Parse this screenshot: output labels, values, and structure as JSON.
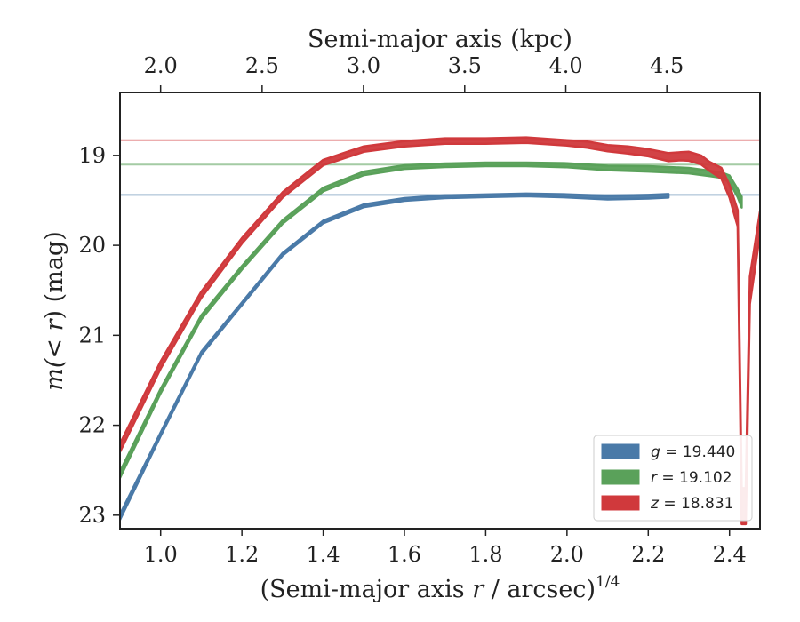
{
  "chart_data": {
    "type": "area",
    "xlabel_main": "(Semi-major axis ",
    "xlabel_var": "r",
    "xlabel_rest": " / arcsec)",
    "xlabel_sup": "1/4",
    "x2label": "Semi-major axis (kpc)",
    "ylabel_main": "m",
    "ylabel_paren": "(< ",
    "ylabel_var": "r",
    "ylabel_rest": ") (mag)",
    "xlim": [
      0.9,
      2.475
    ],
    "ylim": [
      23.15,
      18.3
    ],
    "y_inverted": true,
    "x_ticks": [
      1.0,
      1.2,
      1.4,
      1.6,
      1.8,
      2.0,
      2.2,
      2.4
    ],
    "x_tick_labels": [
      "1.0",
      "1.2",
      "1.4",
      "1.6",
      "1.8",
      "2.0",
      "2.2",
      "2.4"
    ],
    "x2_ticks": [
      2.0,
      2.5,
      3.0,
      3.5,
      4.0,
      4.5
    ],
    "x2_tick_labels": [
      "2.0",
      "2.5",
      "3.0",
      "3.5",
      "4.0",
      "4.5"
    ],
    "x2_positions": [
      0.9999,
      1.2497,
      1.4992,
      1.7483,
      1.9971,
      2.2457
    ],
    "y_ticks": [
      19,
      20,
      21,
      22,
      23
    ],
    "y_tick_labels": [
      "19",
      "20",
      "21",
      "22",
      "23"
    ],
    "grid": false,
    "legend_position": "bottom-right",
    "series": [
      {
        "band": "g",
        "value_text": " = 19.440",
        "color": "#4a7aa8",
        "asymptote": 19.44,
        "x": [
          0.9,
          1.0,
          1.1,
          1.2,
          1.3,
          1.4,
          1.5,
          1.6,
          1.7,
          1.8,
          1.9,
          2.0,
          2.1,
          2.2,
          2.25
        ],
        "y": [
          23.02,
          22.1,
          21.2,
          20.65,
          20.1,
          19.74,
          19.56,
          19.49,
          19.46,
          19.45,
          19.44,
          19.45,
          19.47,
          19.46,
          19.45
        ],
        "band_width": [
          0.06,
          0.04,
          0.035,
          0.03,
          0.03,
          0.03,
          0.03,
          0.03,
          0.03,
          0.03,
          0.03,
          0.035,
          0.04,
          0.04,
          0.04
        ]
      },
      {
        "band": "r",
        "value_text": " = 19.102",
        "color": "#5aa15a",
        "asymptote": 19.102,
        "x": [
          0.9,
          1.0,
          1.1,
          1.2,
          1.3,
          1.4,
          1.5,
          1.6,
          1.7,
          1.8,
          1.9,
          2.0,
          2.1,
          2.2,
          2.3,
          2.35,
          2.38,
          2.4,
          2.42,
          2.43
        ],
        "y": [
          22.55,
          21.62,
          20.8,
          20.25,
          19.74,
          19.38,
          19.2,
          19.13,
          19.11,
          19.1,
          19.1,
          19.11,
          19.14,
          19.15,
          19.17,
          19.2,
          19.22,
          19.26,
          19.42,
          19.52
        ],
        "band_width": [
          0.07,
          0.05,
          0.045,
          0.04,
          0.04,
          0.04,
          0.04,
          0.04,
          0.04,
          0.04,
          0.04,
          0.045,
          0.05,
          0.06,
          0.06,
          0.06,
          0.06,
          0.07,
          0.09,
          0.12
        ]
      },
      {
        "band": "z",
        "value_text": " = 18.831",
        "color": "#d0393c",
        "asymptote": 18.831,
        "x": [
          0.9,
          1.0,
          1.1,
          1.2,
          1.3,
          1.4,
          1.5,
          1.6,
          1.7,
          1.8,
          1.9,
          2.0,
          2.05,
          2.1,
          2.15,
          2.2,
          2.25,
          2.28,
          2.3,
          2.33,
          2.35,
          2.38,
          2.4,
          2.42,
          2.43,
          2.44,
          2.45,
          2.475
        ],
        "y": [
          22.25,
          21.33,
          20.55,
          19.95,
          19.44,
          19.08,
          18.93,
          18.87,
          18.84,
          18.84,
          18.83,
          18.86,
          18.88,
          18.92,
          18.94,
          18.97,
          19.02,
          19.01,
          19.01,
          19.05,
          19.12,
          19.2,
          19.4,
          19.7,
          22.9,
          22.9,
          20.5,
          19.75
        ],
        "band_width": [
          0.09,
          0.08,
          0.07,
          0.06,
          0.06,
          0.06,
          0.06,
          0.06,
          0.06,
          0.06,
          0.06,
          0.06,
          0.07,
          0.07,
          0.08,
          0.08,
          0.09,
          0.09,
          0.1,
          0.1,
          0.1,
          0.12,
          0.14,
          0.18,
          0.4,
          0.4,
          0.3,
          0.25
        ]
      }
    ]
  }
}
